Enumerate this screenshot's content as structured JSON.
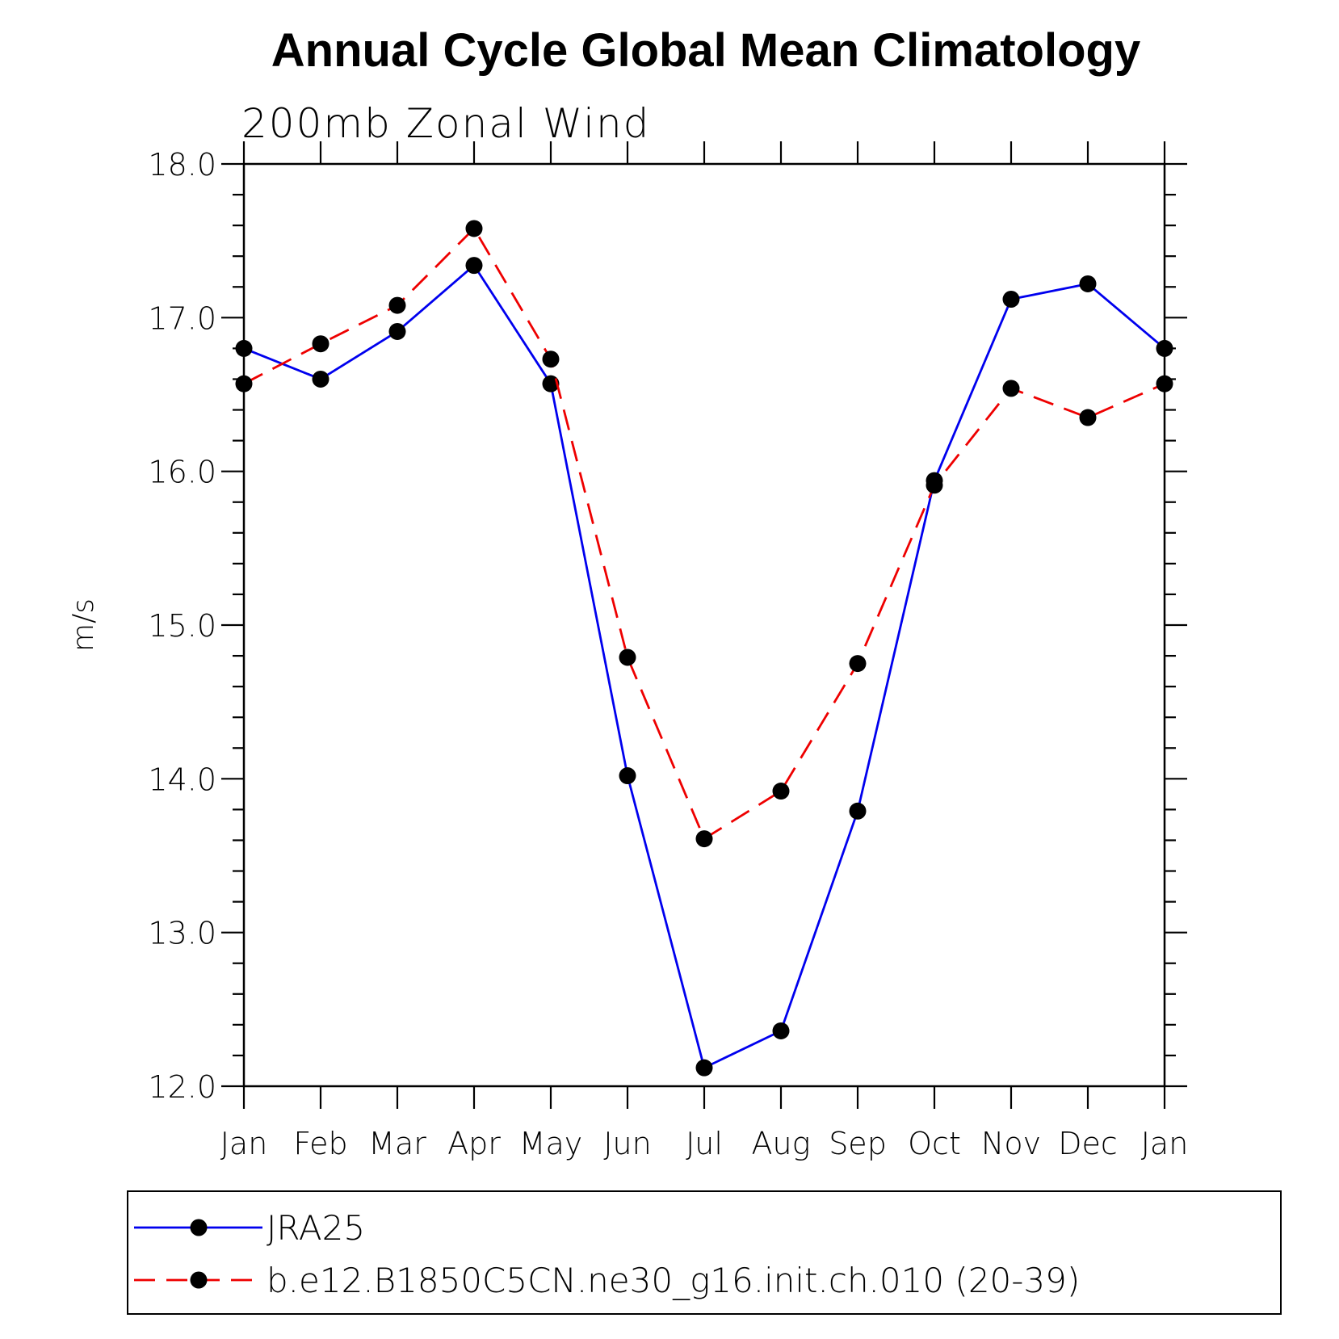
{
  "chart_data": {
    "type": "line",
    "title": "Annual Cycle Global Mean Climatology",
    "subtitle": "200mb  Zonal  Wind",
    "ylabel": "m/s",
    "xlabel": "",
    "categories": [
      "Jan",
      "Feb",
      "Mar",
      "Apr",
      "May",
      "Jun",
      "Jul",
      "Aug",
      "Sep",
      "Oct",
      "Nov",
      "Dec",
      "Jan"
    ],
    "ylim": [
      12.0,
      18.0
    ],
    "yticks": [
      "12.0",
      "13.0",
      "14.0",
      "15.0",
      "16.0",
      "17.0",
      "18.0"
    ],
    "yminor_step": 0.2,
    "grid": false,
    "legend_position": "bottom",
    "series": [
      {
        "name": "JRA25",
        "color": "#0000ee",
        "dash": "solid",
        "marker": "circle",
        "values": [
          16.8,
          16.6,
          16.91,
          17.34,
          16.57,
          14.02,
          12.12,
          12.36,
          13.79,
          15.94,
          17.12,
          17.22,
          16.8
        ]
      },
      {
        "name": "b.e12.B1850C5CN.ne30_g16.init.ch.010 (20-39)",
        "color": "#ee0000",
        "dash": "dashed",
        "marker": "circle",
        "values": [
          16.57,
          16.83,
          17.08,
          17.58,
          16.73,
          14.79,
          13.61,
          13.92,
          14.75,
          15.91,
          16.54,
          16.35,
          16.57
        ]
      }
    ]
  }
}
